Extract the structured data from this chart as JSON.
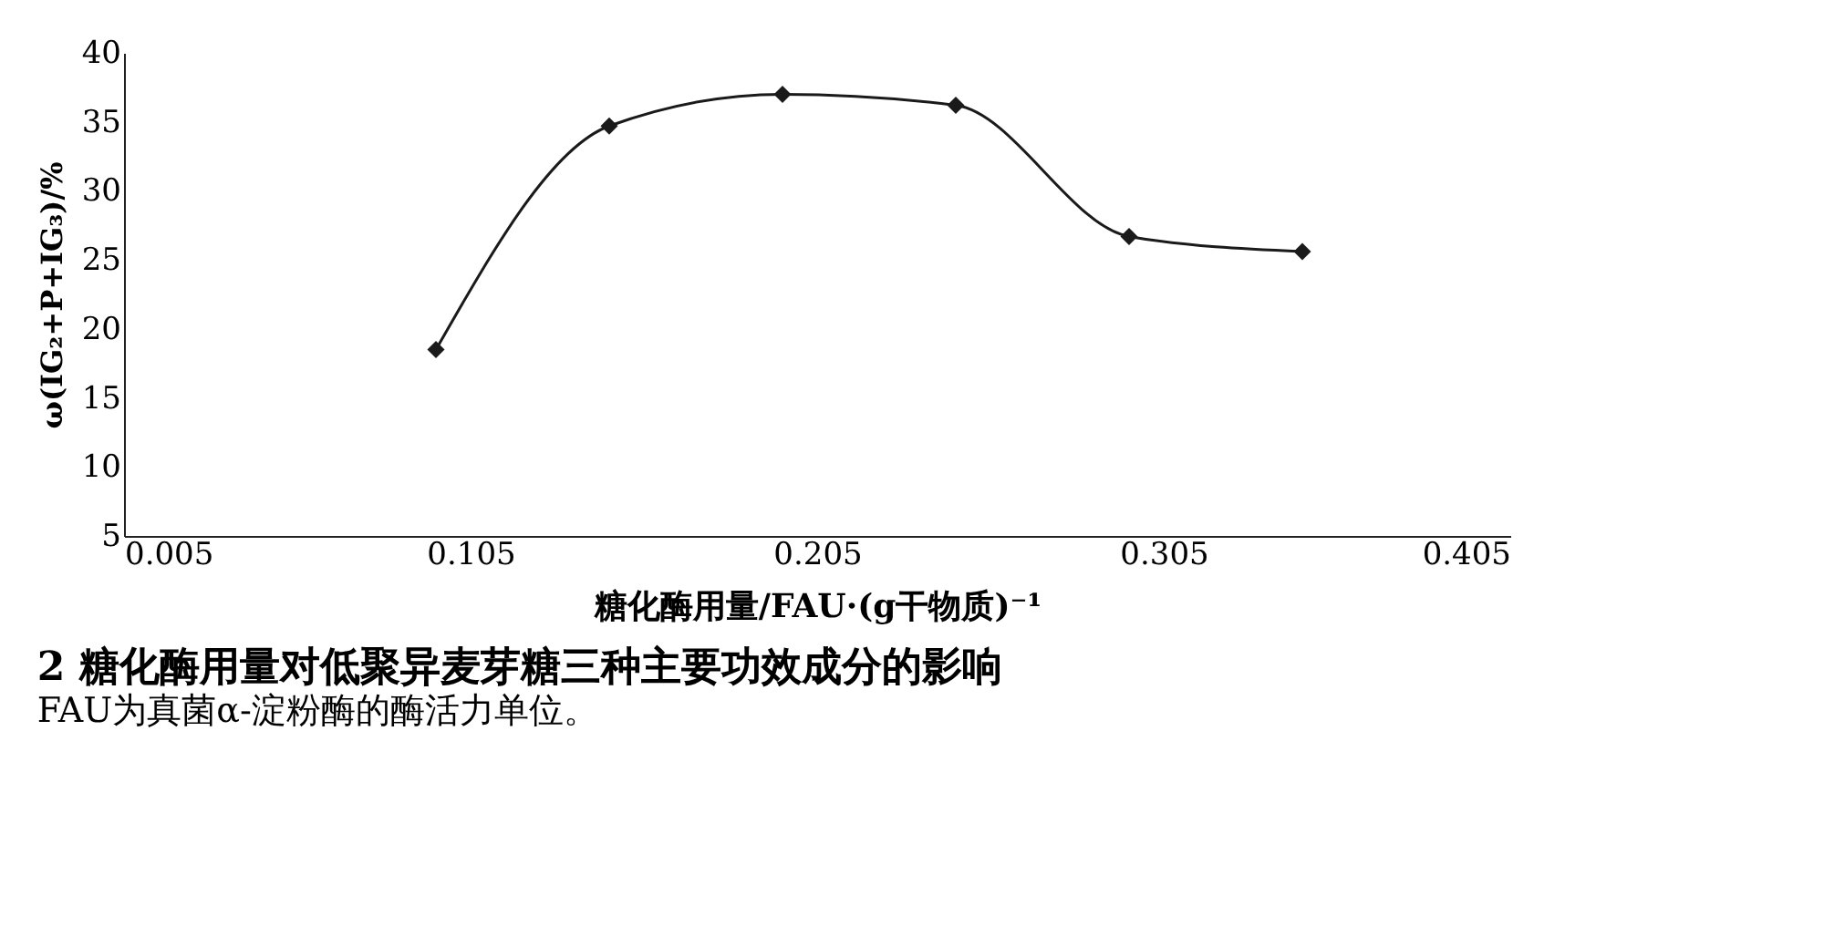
{
  "chart_data": {
    "type": "line",
    "title": "2   糖化酶用量对低聚异麦芽糖三种主要功效成分的影响",
    "annotations": [
      "FAU为真菌α-淀粉酶的酶活力单位。"
    ],
    "xlabel": "糖化酶用量/FAU·(g干物质)⁻¹",
    "ylabel": "ω(IG₂+P+IG₃)/%",
    "x": [
      0.095,
      0.145,
      0.195,
      0.245,
      0.295,
      0.345
    ],
    "series": [
      {
        "color": "#1a1a1a",
        "values": [
          18.5,
          34.7,
          37.0,
          36.2,
          26.7,
          25.6
        ]
      }
    ],
    "xlim": [
      0.005,
      0.405
    ],
    "xticks": [
      0.005,
      0.105,
      0.205,
      0.305,
      0.405
    ],
    "ylim": [
      5,
      40
    ],
    "yticks": [
      5,
      10,
      15,
      20,
      25,
      30,
      35,
      40
    ],
    "marker": "diamond",
    "line_style": "solid",
    "grid": false
  }
}
